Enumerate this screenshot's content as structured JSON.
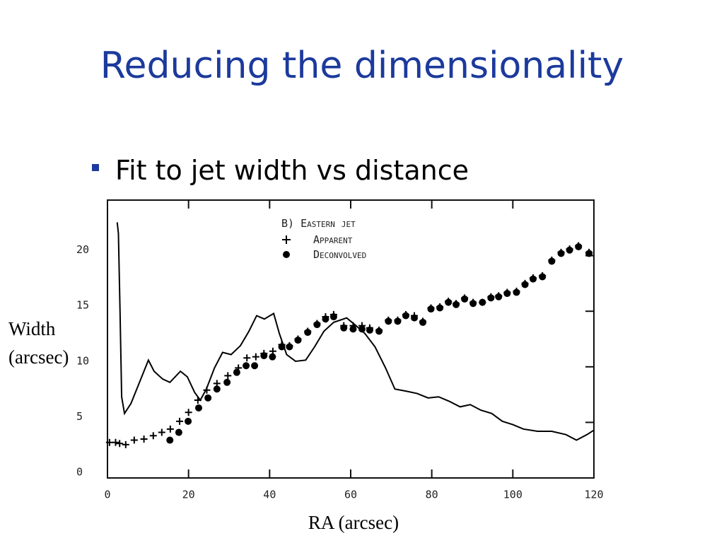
{
  "slide": {
    "title": "Reducing the dimensionality",
    "bullet": "Fit to jet width vs distance"
  },
  "chart_data": {
    "type": "line",
    "xlabel": "RA (arcsec)",
    "ylabel": [
      "Width",
      "(arcsec)"
    ],
    "legend_title": "B) Eastern jet",
    "xlim": [
      0,
      120
    ],
    "xticks": [
      0,
      20,
      40,
      60,
      80,
      100,
      120
    ],
    "ylim": [
      0,
      25
    ],
    "yticks": [
      0,
      5,
      10,
      15,
      20
    ],
    "series": [
      {
        "name": "Apparent",
        "color": "#000000",
        "marker": "plus",
        "x": [
          0.5,
          2,
          3,
          4.5,
          6.6,
          9,
          11.3,
          13.4,
          15.5,
          17.8,
          20,
          22.3,
          24.5,
          27,
          29.7,
          32.3,
          34.4,
          36.6,
          38.6,
          40.8,
          43,
          44.9,
          47,
          49.4,
          51.7,
          53.8,
          55.8,
          58.3,
          60.6,
          62.8,
          64.7,
          67,
          69.3,
          71.6,
          73.6,
          75.7,
          77.8,
          79.8,
          82,
          84.1,
          86,
          88.1,
          90.2,
          92.5,
          94.6,
          96.5,
          98.6,
          100.9,
          103,
          105,
          107.3,
          109.6,
          111.9,
          114,
          116.2,
          118.8
        ],
        "values": [
          3.2,
          3.2,
          3.1,
          3,
          3.4,
          3.5,
          3.8,
          4.1,
          4.4,
          5.1,
          5.9,
          7,
          7.9,
          8.5,
          9.2,
          9.9,
          10.8,
          10.9,
          11.2,
          11.4,
          12,
          11.9,
          12.5,
          13.2,
          13.9,
          14.5,
          14.7,
          13.7,
          13.7,
          13.7,
          13.5,
          13.3,
          14.2,
          14.2,
          14.7,
          14.6,
          14.1,
          15.3,
          15.4,
          15.9,
          15.7,
          16.2,
          15.8,
          15.8,
          16.3,
          16.4,
          16.7,
          16.8,
          17.5,
          18,
          18.2,
          19.6,
          20.3,
          20.6,
          20.9,
          20.3
        ]
      },
      {
        "name": "Deconvolved",
        "color": "#000000",
        "marker": "circle",
        "x": [
          15.4,
          17.6,
          19.9,
          22.5,
          24.8,
          27,
          29.5,
          31.9,
          34.2,
          36.3,
          38.6,
          40.7,
          43,
          44.9,
          47,
          49.4,
          51.7,
          53.8,
          55.8,
          58.3,
          60.6,
          62.8,
          64.7,
          67,
          69.3,
          71.6,
          73.6,
          75.7,
          77.8,
          79.8,
          82,
          84.1,
          86,
          88.1,
          90.2,
          92.5,
          94.6,
          96.5,
          98.6,
          100.9,
          103,
          105,
          107.3,
          109.6,
          111.9,
          114,
          116.2,
          118.8
        ],
        "values": [
          3.4,
          4.1,
          5.1,
          6.3,
          7.2,
          8,
          8.6,
          9.5,
          10.1,
          10.1,
          11,
          10.9,
          11.8,
          11.8,
          12.4,
          13.1,
          13.8,
          14.3,
          14.5,
          13.5,
          13.4,
          13.4,
          13.3,
          13.2,
          14.1,
          14.1,
          14.6,
          14.4,
          14,
          15.2,
          15.3,
          15.8,
          15.6,
          16.1,
          15.7,
          15.8,
          16.2,
          16.3,
          16.6,
          16.7,
          17.4,
          17.9,
          18.1,
          19.5,
          20.2,
          20.5,
          20.8,
          20.2
        ]
      },
      {
        "color": "#000000",
        "marker": "none",
        "x": [
          2.4,
          2.7,
          3.1,
          3.5,
          4.2,
          5.8,
          7.9,
          10.1,
          11.5,
          13.6,
          15.4,
          18,
          19.7,
          21.5,
          22.9,
          24.4,
          26.4,
          28.4,
          30.5,
          32.8,
          34.9,
          36.8,
          38.7,
          41,
          42.4,
          44.2,
          46.4,
          48.9,
          51.1,
          53.4,
          55.8,
          59,
          61,
          63.5,
          66,
          68.6,
          70.9,
          73.8,
          76.4,
          79.1,
          81.7,
          84.3,
          87,
          89.5,
          92.1,
          94.8,
          97.4,
          100,
          102.6,
          106.1,
          109.6,
          113.1,
          115.7,
          118.3,
          120
        ],
        "values": [
          23,
          22,
          15,
          7.3,
          5.8,
          6.7,
          8.6,
          10.6,
          9.6,
          8.9,
          8.6,
          9.6,
          9.1,
          7.7,
          7,
          8,
          9.9,
          11.3,
          11.1,
          11.9,
          13.2,
          14.6,
          14.3,
          14.8,
          13,
          11.1,
          10.5,
          10.6,
          11.8,
          13.2,
          14,
          14.4,
          13.8,
          13,
          11.8,
          9.9,
          8,
          7.8,
          7.6,
          7.2,
          7.3,
          6.9,
          6.4,
          6.6,
          6.1,
          5.8,
          5.1,
          4.8,
          4.4,
          4.2,
          4.2,
          3.9,
          3.4,
          3.9,
          4.3
        ]
      }
    ]
  }
}
